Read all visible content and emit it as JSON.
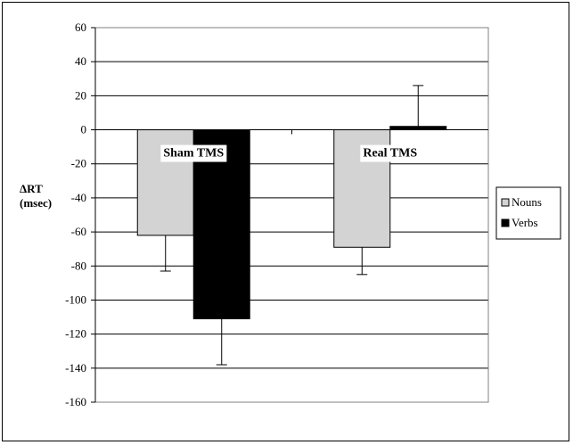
{
  "chart_data": {
    "type": "bar",
    "categories": [
      "Sham TMS",
      "Real TMS"
    ],
    "series": [
      {
        "name": "Nouns",
        "values": [
          -62,
          -69
        ],
        "errors": [
          21,
          16
        ],
        "color": "#d3d3d3"
      },
      {
        "name": "Verbs",
        "values": [
          -111,
          2
        ],
        "errors": [
          27,
          24
        ],
        "color": "#000000"
      }
    ],
    "ylabel_line1": "ΔRT",
    "ylabel_line2": "(msec)",
    "ylim": [
      -160,
      60
    ],
    "yticks": [
      60,
      40,
      20,
      0,
      -20,
      -40,
      -60,
      -80,
      -100,
      -120,
      -140,
      -160
    ],
    "grid": true,
    "legend_position": "right"
  }
}
